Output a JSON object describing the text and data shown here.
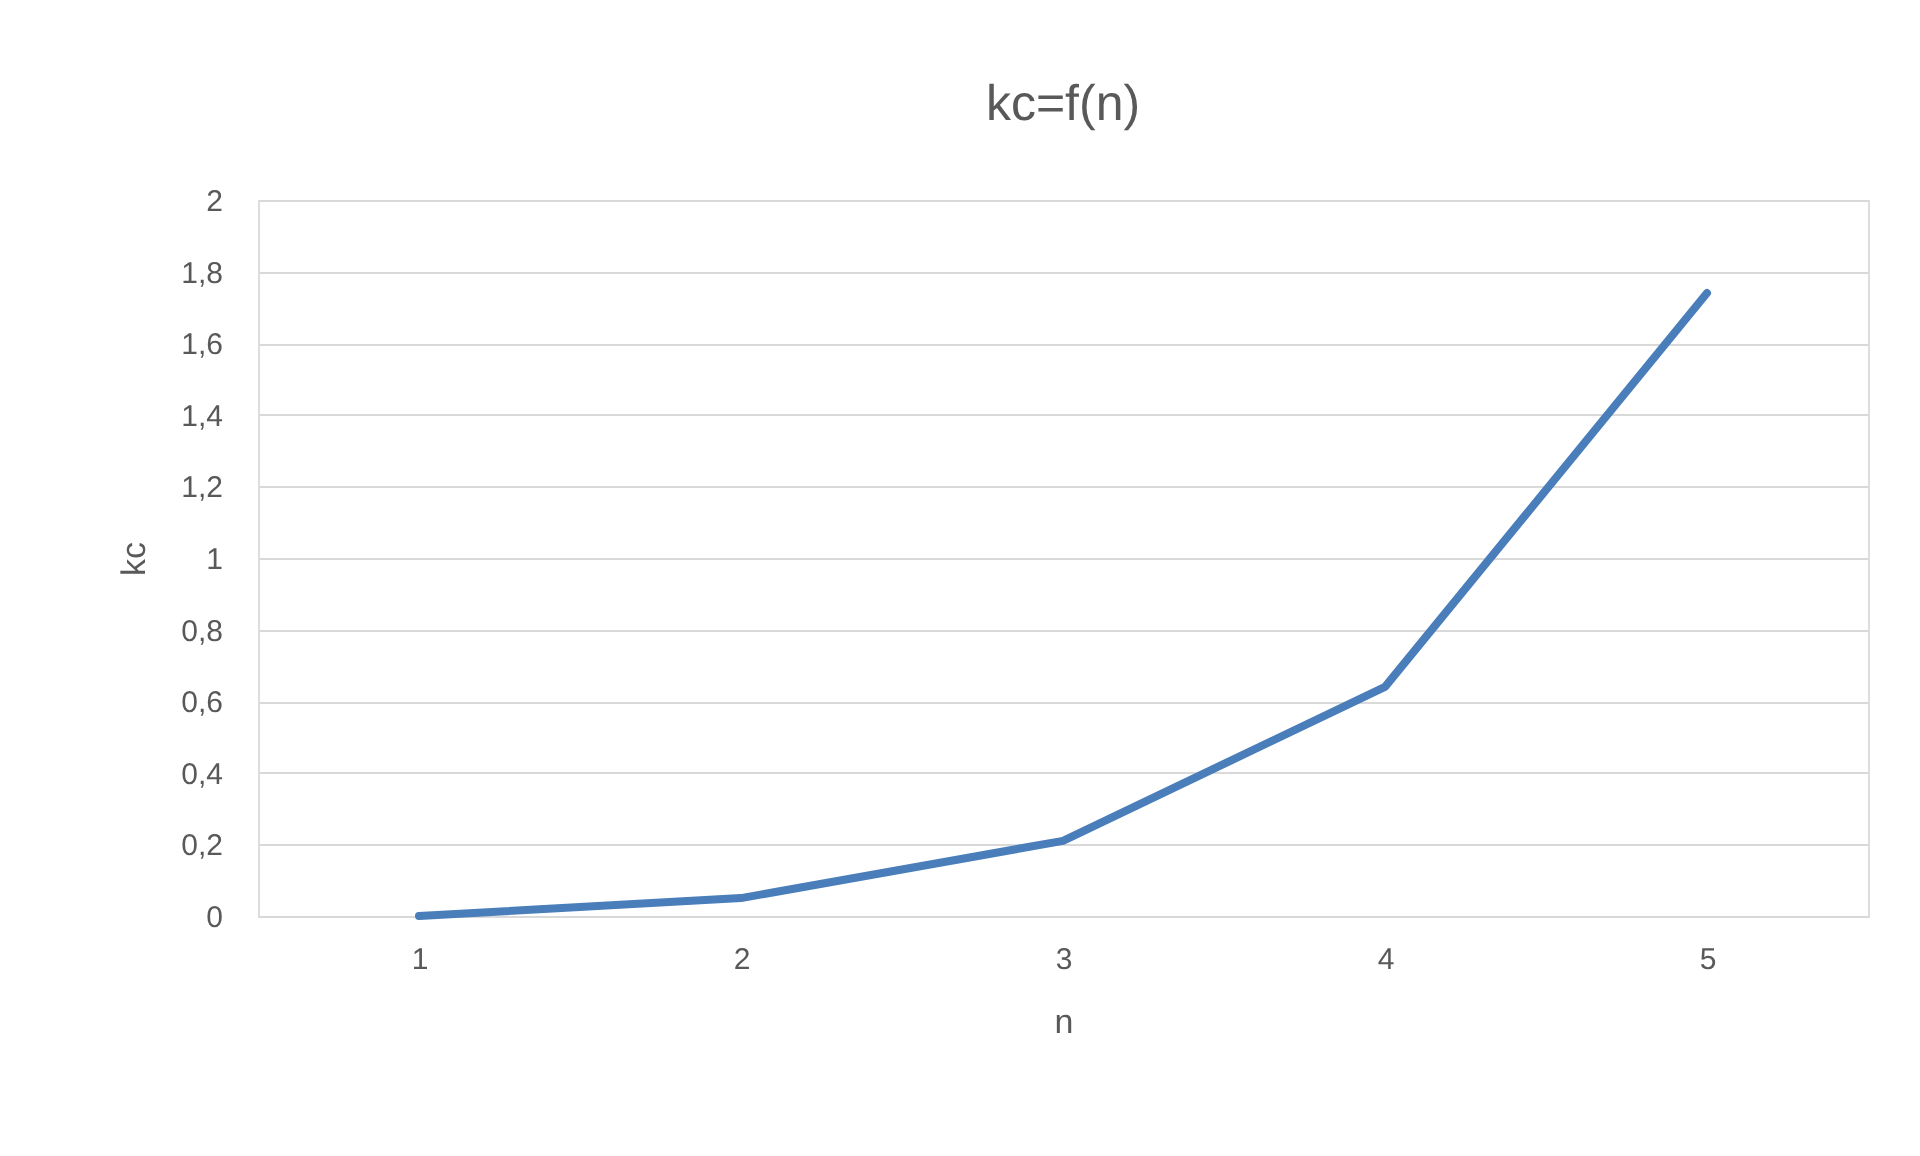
{
  "chart_data": {
    "type": "line",
    "title": "kc=f(n)",
    "xlabel": "n",
    "ylabel": "kc",
    "categories": [
      "1",
      "2",
      "3",
      "4",
      "5"
    ],
    "series": [
      {
        "color": "#4a7ebb",
        "values": [
          0,
          0.05,
          0.21,
          0.64,
          1.74
        ]
      }
    ],
    "ylim": [
      0,
      2
    ],
    "yticks": [
      0,
      {
        "value": 0.2,
        "label": "0,2"
      },
      {
        "value": 0.4,
        "label": "0,4"
      },
      {
        "value": 0.6,
        "label": "0,6"
      },
      {
        "value": 0.8,
        "label": "0,8"
      },
      1,
      {
        "value": 1.2,
        "label": "1,2"
      },
      {
        "value": 1.4,
        "label": "1,4"
      },
      {
        "value": 1.6,
        "label": "1,6"
      },
      {
        "value": 1.8,
        "label": "1,8"
      },
      2
    ],
    "grid": "y",
    "marker": "none",
    "line_style": "solid"
  }
}
